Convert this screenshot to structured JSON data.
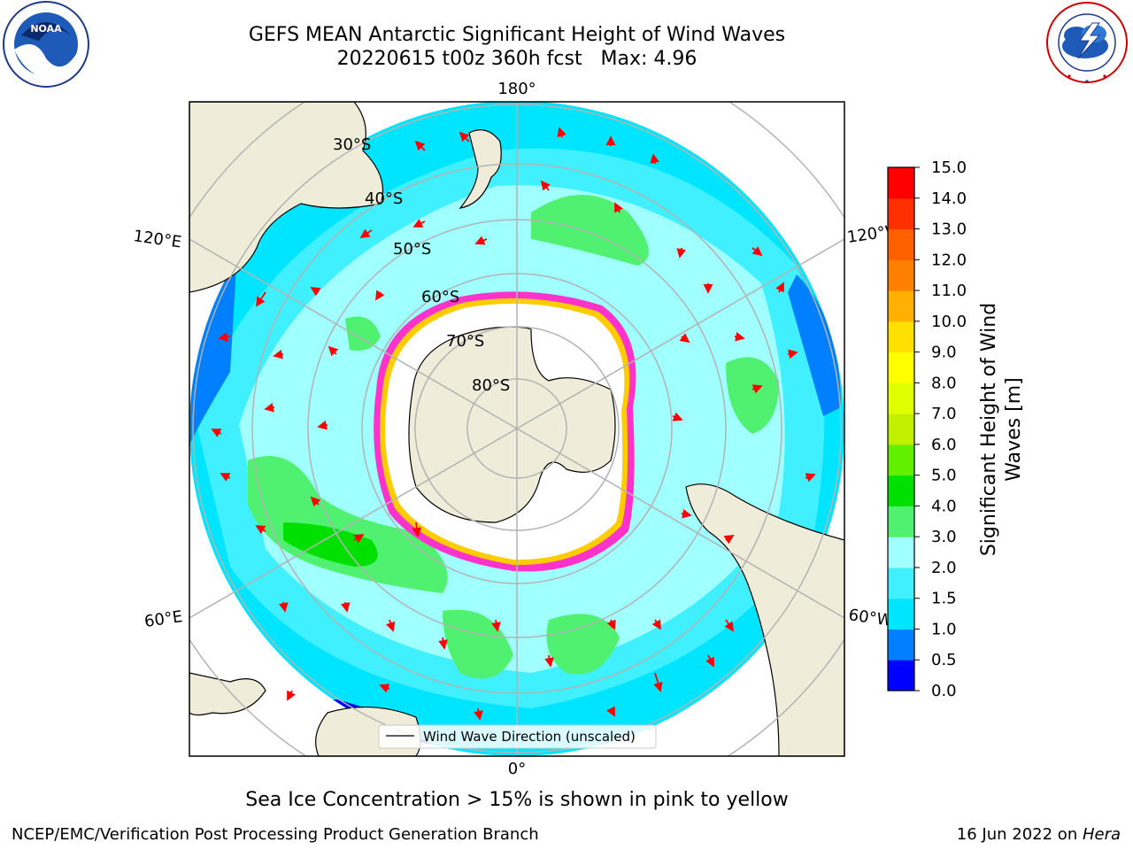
{
  "title": {
    "line1": "GEFS MEAN Antarctic Significant Height of Wind Waves",
    "line2": "20220615 t00z 360h fcst   Max: 4.96"
  },
  "logos": {
    "left": {
      "icon": "noaa-logo-icon",
      "text": "NOAA"
    },
    "right": {
      "icon": "nws-logo-icon",
      "text": "NATIONAL WEATHER SERVICE"
    }
  },
  "map": {
    "projection": "south-polar-stereographic",
    "longitude_labels": {
      "top": "180°",
      "upper_left": "120°E",
      "upper_right": "120°W",
      "lower_left": "60°E",
      "lower_right": "60°W",
      "bottom": "0°"
    },
    "latitude_labels": [
      "30°S",
      "40°S",
      "50°S",
      "60°S",
      "70°S",
      "80°S"
    ],
    "legend": {
      "label": "Wind Wave Direction (unscaled)"
    },
    "arrow_color": "#ff0000",
    "land_color": "#efedd9",
    "grid_color": "#b3b3b3"
  },
  "colorbar": {
    "label": "Significant Height of Wind Waves [m]",
    "ticks": [
      "0.0",
      "0.5",
      "1.0",
      "1.5",
      "2.0",
      "3.0",
      "4.0",
      "5.0",
      "6.0",
      "7.0",
      "8.0",
      "9.0",
      "10.0",
      "11.0",
      "12.0",
      "13.0",
      "14.0",
      "15.0"
    ],
    "colors": [
      "#0000ff",
      "#0080ff",
      "#00e5ff",
      "#40f0ff",
      "#a0ffff",
      "#50f070",
      "#00e000",
      "#60f000",
      "#c0f000",
      "#e0ff00",
      "#ffff00",
      "#ffe000",
      "#ffb000",
      "#ff8000",
      "#ff6000",
      "#ff3000",
      "#ff0000"
    ]
  },
  "caption": "Sea Ice Concentration > 15% is shown in pink to yellow",
  "footer": {
    "left": "NCEP/EMC/Verification Post Processing Product Generation Branch",
    "right_prefix": "16 Jun 2022 on ",
    "right_system": "Hera"
  }
}
